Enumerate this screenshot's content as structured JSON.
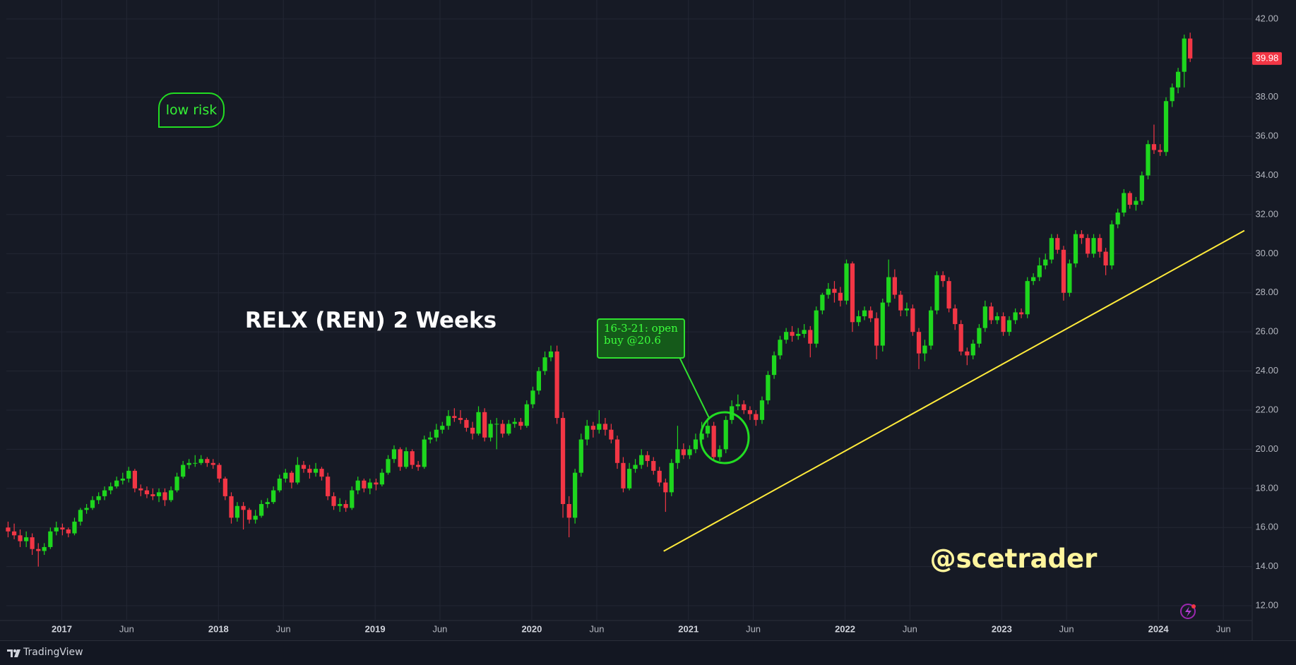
{
  "chart_data": {
    "type": "candlestick",
    "title": "RELX (REN) 2 Weeks",
    "watermark": "@scetrader",
    "annotations": [
      "low risk",
      "16-3-21: open buy @20.6"
    ],
    "source": "TradingView",
    "up_color": "#1ed61e",
    "down_color": "#f23645",
    "grid": true,
    "xlim": [
      2016.646,
      2024.599
    ],
    "ylim": [
      11.28,
      42.97
    ],
    "xticks": [
      2017,
      {
        "value": 2017.414,
        "label": "Jun"
      },
      2018,
      {
        "value": 2018.414,
        "label": "Jun"
      },
      2019,
      {
        "value": 2019.414,
        "label": "Jun"
      },
      2020,
      {
        "value": 2020.415,
        "label": "Jun"
      },
      2021,
      {
        "value": 2021.414,
        "label": "Jun"
      },
      2022,
      {
        "value": 2022.414,
        "label": "Jun"
      },
      2023,
      {
        "value": 2023.414,
        "label": "Jun"
      },
      2024,
      {
        "value": 2024.415,
        "label": "Jun"
      }
    ],
    "yticks": [
      {
        "value": 12,
        "label": "12.00"
      },
      {
        "value": 14,
        "label": "14.00"
      },
      {
        "value": 16,
        "label": "16.00"
      },
      {
        "value": 18,
        "label": "18.00"
      },
      {
        "value": 20,
        "label": "20.00"
      },
      {
        "value": 22,
        "label": "22.00"
      },
      {
        "value": 24,
        "label": "24.00"
      },
      {
        "value": 26,
        "label": "26.00"
      },
      {
        "value": 28,
        "label": "28.00"
      },
      {
        "value": 30,
        "label": "30.00"
      },
      {
        "value": 32,
        "label": "32.00"
      },
      {
        "value": 34,
        "label": "34.00"
      },
      {
        "value": 36,
        "label": "36.00"
      },
      {
        "value": 38,
        "label": "38.00"
      },
      {
        "value": 40,
        "label": "40.00"
      },
      {
        "value": 42,
        "label": "42.00"
      }
    ],
    "trendline": {
      "x": [
        2020.842,
        2024.549
      ],
      "y": [
        14.79,
        31.18
      ],
      "color": "#ffeb3b"
    },
    "x": [
      2016.657,
      2016.696,
      2016.734,
      2016.773,
      2016.811,
      2016.85,
      2016.888,
      2016.927,
      2016.965,
      2017.004,
      2017.042,
      2017.081,
      2017.119,
      2017.158,
      2017.196,
      2017.235,
      2017.273,
      2017.312,
      2017.35,
      2017.389,
      2017.427,
      2017.466,
      2017.504,
      2017.543,
      2017.581,
      2017.62,
      2017.658,
      2017.697,
      2017.735,
      2017.774,
      2017.812,
      2017.851,
      2017.889,
      2017.928,
      2017.966,
      2018.005,
      2018.043,
      2018.082,
      2018.12,
      2018.159,
      2018.197,
      2018.236,
      2018.274,
      2018.313,
      2018.351,
      2018.39,
      2018.428,
      2018.467,
      2018.505,
      2018.544,
      2018.582,
      2018.621,
      2018.659,
      2018.698,
      2018.736,
      2018.775,
      2018.813,
      2018.852,
      2018.89,
      2018.929,
      2018.967,
      2019.006,
      2019.044,
      2019.083,
      2019.121,
      2019.16,
      2019.198,
      2019.237,
      2019.275,
      2019.314,
      2019.352,
      2019.391,
      2019.429,
      2019.468,
      2019.506,
      2019.545,
      2019.583,
      2019.622,
      2019.66,
      2019.699,
      2019.737,
      2019.776,
      2019.814,
      2019.853,
      2019.891,
      2019.93,
      2019.968,
      2020.007,
      2020.045,
      2020.084,
      2020.122,
      2020.161,
      2020.199,
      2020.238,
      2020.276,
      2020.315,
      2020.353,
      2020.392,
      2020.43,
      2020.469,
      2020.507,
      2020.546,
      2020.584,
      2020.623,
      2020.661,
      2020.7,
      2020.738,
      2020.777,
      2020.815,
      2020.854,
      2020.892,
      2020.931,
      2020.969,
      2021.008,
      2021.046,
      2021.085,
      2021.123,
      2021.162,
      2021.2,
      2021.239,
      2021.277,
      2021.316,
      2021.354,
      2021.393,
      2021.431,
      2021.47,
      2021.508,
      2021.547,
      2021.585,
      2021.624,
      2021.662,
      2021.701,
      2021.739,
      2021.778,
      2021.816,
      2021.855,
      2021.893,
      2021.932,
      2021.97,
      2022.009,
      2022.047,
      2022.086,
      2022.124,
      2022.163,
      2022.201,
      2022.24,
      2022.278,
      2022.317,
      2022.355,
      2022.394,
      2022.432,
      2022.471,
      2022.509,
      2022.548,
      2022.586,
      2022.625,
      2022.663,
      2022.702,
      2022.74,
      2022.779,
      2022.817,
      2022.856,
      2022.894,
      2022.933,
      2022.971,
      2023.01,
      2023.048,
      2023.087,
      2023.125,
      2023.164,
      2023.202,
      2023.241,
      2023.279,
      2023.318,
      2023.356,
      2023.395,
      2023.433,
      2023.472,
      2023.51,
      2023.549,
      2023.587,
      2023.626,
      2023.664,
      2023.703,
      2023.741,
      2023.78,
      2023.818,
      2023.857,
      2023.895,
      2023.934,
      2023.972,
      2024.011,
      2024.049,
      2024.088,
      2024.126,
      2024.165,
      2024.203
    ],
    "open": [
      16.0,
      15.8,
      15.6,
      15.3,
      15.5,
      14.9,
      14.8,
      15.0,
      15.8,
      16.0,
      15.9,
      15.7,
      16.3,
      16.9,
      17.0,
      17.4,
      17.6,
      17.9,
      18.1,
      18.4,
      18.5,
      18.9,
      18.0,
      17.9,
      17.7,
      17.6,
      17.8,
      17.4,
      17.9,
      18.6,
      19.2,
      19.3,
      19.3,
      19.5,
      19.3,
      19.2,
      18.5,
      17.6,
      16.5,
      17.1,
      16.9,
      16.4,
      16.6,
      17.2,
      17.3,
      17.9,
      18.5,
      18.8,
      18.3,
      19.2,
      19.0,
      18.8,
      19.0,
      18.6,
      17.6,
      17.1,
      17.2,
      17.0,
      17.9,
      18.4,
      18.0,
      18.3,
      18.2,
      18.8,
      19.5,
      20.0,
      19.1,
      19.9,
      19.2,
      19.1,
      20.5,
      20.6,
      21.0,
      21.2,
      21.7,
      21.6,
      21.5,
      21.1,
      20.8,
      21.9,
      20.6,
      21.3,
      21.3,
      20.8,
      21.3,
      21.4,
      21.2,
      22.3,
      23.0,
      24.0,
      24.7,
      25.0,
      21.6,
      17.2,
      16.5,
      18.8,
      20.5,
      21.2,
      21.0,
      21.3,
      21.0,
      20.5,
      19.3,
      18.0,
      19.0,
      19.2,
      19.7,
      19.4,
      18.9,
      18.3,
      17.8,
      19.3,
      20.0,
      19.7,
      20.0,
      20.5,
      20.8,
      21.2,
      19.6,
      20.0,
      21.5,
      22.2,
      22.3,
      22.0,
      21.8,
      21.5,
      22.5,
      23.8,
      24.8,
      25.6,
      26.0,
      25.8,
      25.9,
      26.1,
      25.4,
      27.1,
      27.9,
      28.2,
      28.0,
      27.6,
      29.5,
      26.5,
      26.8,
      27.1,
      26.7,
      25.3,
      27.5,
      28.8,
      27.9,
      27.1,
      27.2,
      26.0,
      24.9,
      25.3,
      27.1,
      28.9,
      28.6,
      27.2,
      26.4,
      25.0,
      24.8,
      25.4,
      26.2,
      27.3,
      26.6,
      26.8,
      26.0,
      26.6,
      27.0,
      26.9,
      28.6,
      28.8,
      29.4,
      29.7,
      30.8,
      30.2,
      28.0,
      29.5,
      31.0,
      30.8,
      30.0,
      30.8,
      30.1,
      29.4,
      31.5,
      32.1,
      33.1,
      32.5,
      32.7,
      34.0,
      35.6,
      35.3,
      35.2,
      37.8,
      38.5,
      39.3,
      41.0
    ],
    "high": [
      16.3,
      16.2,
      15.9,
      15.8,
      15.7,
      15.2,
      15.2,
      16.0,
      16.3,
      16.2,
      16.0,
      16.5,
      17.0,
      17.2,
      17.6,
      17.8,
      18.1,
      18.3,
      18.6,
      18.8,
      19.1,
      19.0,
      18.2,
      18.1,
      18.0,
      18.0,
      18.0,
      18.1,
      18.8,
      19.4,
      19.5,
      19.7,
      19.7,
      19.6,
      19.5,
      19.3,
      18.6,
      17.8,
      17.3,
      17.3,
      17.0,
      16.9,
      17.4,
      17.5,
      18.1,
      18.7,
      19.0,
      18.9,
      19.6,
      19.4,
      19.2,
      19.3,
      19.1,
      18.8,
      17.8,
      17.5,
      17.4,
      18.1,
      18.6,
      18.5,
      18.5,
      18.5,
      19.0,
      19.7,
      20.2,
      20.1,
      20.1,
      20.0,
      19.4,
      20.7,
      20.9,
      21.3,
      21.4,
      22.0,
      22.1,
      22.0,
      21.6,
      21.4,
      22.2,
      22.1,
      21.5,
      21.6,
      21.5,
      21.5,
      21.6,
      21.6,
      22.5,
      23.2,
      24.2,
      25.0,
      25.3,
      25.3,
      21.9,
      17.6,
      19.0,
      20.8,
      21.5,
      21.4,
      22.0,
      21.6,
      21.3,
      20.7,
      19.6,
      19.3,
      19.5,
      20.0,
      19.9,
      19.6,
      19.1,
      18.5,
      19.5,
      21.2,
      20.3,
      20.2,
      20.8,
      21.4,
      21.6,
      21.4,
      20.2,
      21.7,
      22.5,
      22.8,
      22.5,
      22.2,
      22.0,
      22.7,
      24.0,
      25.0,
      25.8,
      26.2,
      26.3,
      26.2,
      26.4,
      26.3,
      27.3,
      28.0,
      28.5,
      28.6,
      28.3,
      29.7,
      29.6,
      27.1,
      27.3,
      27.3,
      27.0,
      27.7,
      29.7,
      29.2,
      28.1,
      27.5,
      27.4,
      26.2,
      25.6,
      27.3,
      29.1,
      29.1,
      28.8,
      27.4,
      26.6,
      25.2,
      25.6,
      26.4,
      27.6,
      27.5,
      27.0,
      27.0,
      26.8,
      27.2,
      27.2,
      28.8,
      29.0,
      29.8,
      30.0,
      31.0,
      31.0,
      30.4,
      29.7,
      31.2,
      31.2,
      31.0,
      31.0,
      31.0,
      30.3,
      31.7,
      32.3,
      33.3,
      33.2,
      32.9,
      34.2,
      35.8,
      36.6,
      35.6,
      38.0,
      38.7,
      39.5,
      41.2,
      41.3
    ],
    "low": [
      15.5,
      15.4,
      15.0,
      15.0,
      14.6,
      14.0,
      14.6,
      14.9,
      15.6,
      15.6,
      15.5,
      15.6,
      16.1,
      16.7,
      16.9,
      17.2,
      17.4,
      17.7,
      18.0,
      18.2,
      18.3,
      17.8,
      17.6,
      17.5,
      17.4,
      17.3,
      17.1,
      17.3,
      17.8,
      18.5,
      19.0,
      19.1,
      19.2,
      19.1,
      19.0,
      18.3,
      17.4,
      16.2,
      16.3,
      15.9,
      16.2,
      16.2,
      16.5,
      17.0,
      17.2,
      17.8,
      18.3,
      18.0,
      18.2,
      18.8,
      18.5,
      18.6,
      18.4,
      17.4,
      16.9,
      16.8,
      16.8,
      16.9,
      17.7,
      17.8,
      17.7,
      17.9,
      18.1,
      18.7,
      19.3,
      18.9,
      19.0,
      19.0,
      18.9,
      19.0,
      20.3,
      20.4,
      20.8,
      21.0,
      21.4,
      21.3,
      20.9,
      20.5,
      20.7,
      20.4,
      20.4,
      20.0,
      20.6,
      20.7,
      21.1,
      21.0,
      21.1,
      22.1,
      22.8,
      23.8,
      24.5,
      21.3,
      16.5,
      15.5,
      16.2,
      18.6,
      20.2,
      20.6,
      20.8,
      20.7,
      20.3,
      19.0,
      17.8,
      17.9,
      18.8,
      19.0,
      19.1,
      18.7,
      18.1,
      16.8,
      17.6,
      19.0,
      19.5,
      19.5,
      19.8,
      20.3,
      20.6,
      19.4,
      19.4,
      19.8,
      21.3,
      22.0,
      21.8,
      21.5,
      21.2,
      21.3,
      22.3,
      23.6,
      24.6,
      25.4,
      25.5,
      25.6,
      25.7,
      24.7,
      25.2,
      26.9,
      27.7,
      27.5,
      27.3,
      27.4,
      26.0,
      26.3,
      26.6,
      26.5,
      24.6,
      25.0,
      27.3,
      27.7,
      26.8,
      26.8,
      25.8,
      24.1,
      24.5,
      25.1,
      26.9,
      28.3,
      27.0,
      26.1,
      24.8,
      24.3,
      24.6,
      25.2,
      26.0,
      26.4,
      26.4,
      25.8,
      25.8,
      26.4,
      26.7,
      26.7,
      28.4,
      28.6,
      29.2,
      29.5,
      30.0,
      27.6,
      27.8,
      29.3,
      30.5,
      29.8,
      29.8,
      29.8,
      28.9,
      29.2,
      31.3,
      31.9,
      32.3,
      32.2,
      32.5,
      33.8,
      35.1,
      35.0,
      35.0,
      37.5,
      38.2,
      38.5,
      39.8
    ],
    "close": [
      15.8,
      15.6,
      15.3,
      15.5,
      14.9,
      14.8,
      15.0,
      15.8,
      16.0,
      15.9,
      15.7,
      16.3,
      16.9,
      17.0,
      17.4,
      17.6,
      17.9,
      18.1,
      18.4,
      18.5,
      18.9,
      18.0,
      17.9,
      17.7,
      17.6,
      17.8,
      17.4,
      17.9,
      18.6,
      19.2,
      19.3,
      19.3,
      19.5,
      19.3,
      19.2,
      18.5,
      17.6,
      16.5,
      17.1,
      16.9,
      16.4,
      16.6,
      17.2,
      17.3,
      17.9,
      18.5,
      18.8,
      18.3,
      19.2,
      19.0,
      18.8,
      19.0,
      18.6,
      17.6,
      17.1,
      17.2,
      17.0,
      17.9,
      18.4,
      18.0,
      18.3,
      18.2,
      18.8,
      19.5,
      20.0,
      19.1,
      19.9,
      19.2,
      19.1,
      20.5,
      20.6,
      21.0,
      21.2,
      21.7,
      21.6,
      21.5,
      21.1,
      20.8,
      21.9,
      20.6,
      21.3,
      21.3,
      20.8,
      21.3,
      21.4,
      21.2,
      22.3,
      23.0,
      24.0,
      24.7,
      25.0,
      21.6,
      17.2,
      16.5,
      18.8,
      20.5,
      21.2,
      21.0,
      21.3,
      21.0,
      20.5,
      19.3,
      18.0,
      19.0,
      19.2,
      19.7,
      19.4,
      18.9,
      18.3,
      17.8,
      19.3,
      20.0,
      19.7,
      20.0,
      20.5,
      20.8,
      21.2,
      19.6,
      20.0,
      21.5,
      22.2,
      22.3,
      22.0,
      21.8,
      21.5,
      22.5,
      23.8,
      24.8,
      25.6,
      26.0,
      25.8,
      25.9,
      26.1,
      25.4,
      27.1,
      27.9,
      28.2,
      28.0,
      27.6,
      29.5,
      26.5,
      26.8,
      27.1,
      26.7,
      25.3,
      27.5,
      28.8,
      27.9,
      27.1,
      27.2,
      26.0,
      24.9,
      25.3,
      27.1,
      28.9,
      28.6,
      27.2,
      26.4,
      25.0,
      24.8,
      25.4,
      26.2,
      27.3,
      26.6,
      26.8,
      26.0,
      26.6,
      27.0,
      26.9,
      28.6,
      28.8,
      29.4,
      29.7,
      30.8,
      30.2,
      28.0,
      29.5,
      31.0,
      30.8,
      30.0,
      30.8,
      30.1,
      29.4,
      31.5,
      32.1,
      33.1,
      32.5,
      32.7,
      34.0,
      35.6,
      35.3,
      35.2,
      37.8,
      38.5,
      39.3,
      41.0,
      39.98
    ]
  }
}
